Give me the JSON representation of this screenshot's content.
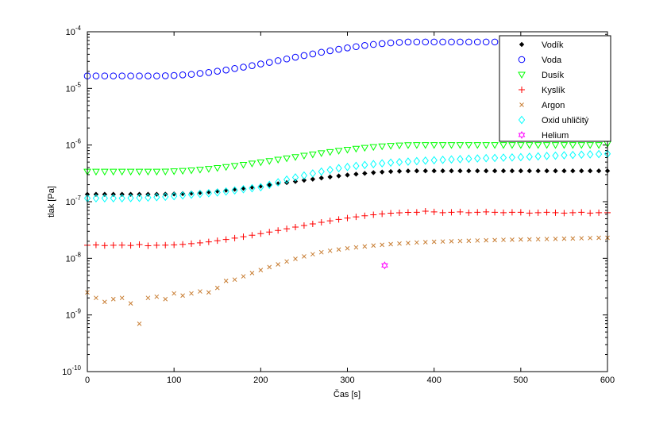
{
  "chart_data": {
    "type": "scatter",
    "xlabel": "Čas [s]",
    "ylabel": "tlak [Pa]",
    "xlim": [
      0,
      600
    ],
    "ylim": [
      1e-10,
      0.0001
    ],
    "yscale": "log",
    "grid": false,
    "legend_position": "top-right",
    "x_ticks": [
      "0",
      "100",
      "200",
      "300",
      "400",
      "500",
      "600"
    ],
    "y_ticks": [
      {
        "base": "10",
        "exp": "-10"
      },
      {
        "base": "10",
        "exp": "-9"
      },
      {
        "base": "10",
        "exp": "-8"
      },
      {
        "base": "10",
        "exp": "-7"
      },
      {
        "base": "10",
        "exp": "-6"
      },
      {
        "base": "10",
        "exp": "-5"
      },
      {
        "base": "10",
        "exp": "-4"
      }
    ],
    "x": [
      0,
      10,
      20,
      30,
      40,
      50,
      60,
      70,
      80,
      90,
      100,
      110,
      120,
      130,
      140,
      150,
      160,
      170,
      180,
      190,
      200,
      210,
      220,
      230,
      240,
      250,
      260,
      270,
      280,
      290,
      300,
      310,
      320,
      330,
      340,
      350,
      360,
      370,
      380,
      390,
      400,
      410,
      420,
      430,
      440,
      450,
      460,
      470,
      480,
      490,
      500,
      510,
      520,
      530,
      540,
      550,
      560,
      570,
      580,
      590,
      600
    ],
    "series": [
      {
        "name": "Vodík",
        "marker": "diamond-filled",
        "color": "#000000",
        "values": [
          1.35e-07,
          1.35e-07,
          1.35e-07,
          1.35e-07,
          1.35e-07,
          1.35e-07,
          1.35e-07,
          1.35e-07,
          1.35e-07,
          1.354e-07,
          1.366e-07,
          1.386e-07,
          1.415e-07,
          1.449e-07,
          1.49e-07,
          1.539e-07,
          1.594e-07,
          1.658e-07,
          1.727e-07,
          1.802e-07,
          1.887e-07,
          1.975e-07,
          2.071e-07,
          2.174e-07,
          2.279e-07,
          2.39e-07,
          2.5e-07,
          2.618e-07,
          2.731e-07,
          2.846e-07,
          2.958e-07,
          3.065e-07,
          3.164e-07,
          3.259e-07,
          3.339e-07,
          3.403e-07,
          3.451e-07,
          3.486e-07,
          3.5e-07,
          3.5e-07,
          3.5e-07,
          3.5e-07,
          3.5e-07,
          3.5e-07,
          3.5e-07,
          3.5e-07,
          3.5e-07,
          3.5e-07,
          3.5e-07,
          3.5e-07,
          3.5e-07,
          3.5e-07,
          3.5e-07,
          3.5e-07,
          3.5e-07,
          3.5e-07,
          3.5e-07,
          3.5e-07,
          3.5e-07,
          3.5e-07,
          3.5e-07
        ]
      },
      {
        "name": "Voda",
        "marker": "circle",
        "color": "#0000ff",
        "values": [
          1.66e-05,
          1.66e-05,
          1.66e-05,
          1.66e-05,
          1.66e-05,
          1.66e-05,
          1.66e-05,
          1.66e-05,
          1.66e-05,
          1.67e-05,
          1.69e-05,
          1.73e-05,
          1.77e-05,
          1.84e-05,
          1.91e-05,
          2.01e-05,
          2.11e-05,
          2.24e-05,
          2.37e-05,
          2.52e-05,
          2.7e-05,
          2.88e-05,
          3.09e-05,
          3.31e-05,
          3.55e-05,
          3.8e-05,
          4.06e-05,
          4.34e-05,
          4.62e-05,
          4.9e-05,
          5.19e-05,
          5.46e-05,
          5.72e-05,
          5.97e-05,
          6.18e-05,
          6.36e-05,
          6.49e-05,
          6.58e-05,
          6.6e-05,
          6.6e-05,
          6.6e-05,
          6.6e-05,
          6.6e-05,
          6.6e-05,
          6.6e-05,
          6.6e-05,
          6.6e-05,
          6.6e-05,
          6.6e-05,
          6.6e-05,
          6.6e-05,
          6.6e-05,
          6.6e-05,
          6.6e-05,
          6.6e-05,
          6.6e-05,
          6.6e-05,
          6.6e-05,
          6.6e-05,
          6.6e-05,
          6.6e-05
        ]
      },
      {
        "name": "Dusík",
        "marker": "triangle-down",
        "color": "#00ff00",
        "values": [
          3.4e-07,
          3.4e-07,
          3.4e-07,
          3.4e-07,
          3.4e-07,
          3.4e-07,
          3.4e-07,
          3.4e-07,
          3.4e-07,
          3.41e-07,
          3.45e-07,
          3.51e-07,
          3.58e-07,
          3.68e-07,
          3.8e-07,
          3.94e-07,
          4.11e-07,
          4.29e-07,
          4.49e-07,
          4.72e-07,
          4.97e-07,
          5.23e-07,
          5.53e-07,
          5.83e-07,
          6.15e-07,
          6.5e-07,
          6.84e-07,
          7.2e-07,
          7.56e-07,
          7.93e-07,
          8.28e-07,
          8.61e-07,
          8.93e-07,
          9.23e-07,
          9.49e-07,
          9.71e-07,
          9.85e-07,
          9.96e-07,
          1e-06,
          1e-06,
          1e-06,
          1e-06,
          1e-06,
          1e-06,
          1e-06,
          1e-06,
          1e-06,
          1e-06,
          1e-06,
          1e-06,
          1e-06,
          1e-06,
          1e-06,
          1e-06,
          1e-06,
          1e-06,
          1e-06,
          1e-06,
          1e-06,
          1e-06,
          1.05e-06
        ]
      },
      {
        "name": "Kyslík",
        "marker": "plus",
        "color": "#ff0000",
        "values": [
          1.7e-08,
          1.72e-08,
          1.68e-08,
          1.7e-08,
          1.71e-08,
          1.69e-08,
          1.75e-08,
          1.67e-08,
          1.7e-08,
          1.707e-08,
          1.731e-08,
          1.765e-08,
          1.816e-08,
          1.877e-08,
          1.955e-08,
          2.045e-08,
          2.149e-08,
          2.271e-08,
          2.406e-08,
          2.555e-08,
          2.725e-08,
          2.905e-08,
          3.109e-08,
          3.324e-08,
          3.555e-08,
          3.8e-08,
          4.051e-08,
          4.321e-08,
          4.592e-08,
          4.865e-08,
          5.136e-08,
          5.394e-08,
          5.649e-08,
          5.882e-08,
          6.083e-08,
          6.256e-08,
          6.375e-08,
          6.46e-08,
          6.5e-08,
          6.8e-08,
          6.6e-08,
          6.4e-08,
          6.5e-08,
          6.6e-08,
          6.4e-08,
          6.5e-08,
          6.6e-08,
          6.5e-08,
          6.4e-08,
          6.5e-08,
          6.5e-08,
          6.3e-08,
          6.4e-08,
          6.5e-08,
          6.4e-08,
          6.3e-08,
          6.4e-08,
          6.5e-08,
          6.3e-08,
          6.4e-08,
          6.4e-08
        ]
      },
      {
        "name": "Argon",
        "marker": "x",
        "color": "#c87d32",
        "values": [
          2.5e-09,
          2e-09,
          1.7e-09,
          1.9e-09,
          2e-09,
          1.6e-09,
          7e-10,
          2e-09,
          2.1e-09,
          1.9e-09,
          2.4e-09,
          2.2e-09,
          2.4e-09,
          2.6e-09,
          2.5e-09,
          3e-09,
          4e-09,
          4.2e-09,
          4.8e-09,
          5.5e-09,
          6.2e-09,
          7e-09,
          7.8e-09,
          8.8e-09,
          9.8e-09,
          1.08e-08,
          1.18e-08,
          1.28e-08,
          1.36e-08,
          1.43e-08,
          1.5e-08,
          1.56e-08,
          1.62e-08,
          1.68e-08,
          1.73e-08,
          1.78e-08,
          1.82e-08,
          1.86e-08,
          1.9e-08,
          1.93e-08,
          1.96e-08,
          1.98e-08,
          2e-08,
          2.02e-08,
          2.04e-08,
          2.06e-08,
          2.08e-08,
          2.1e-08,
          2.12e-08,
          2.13e-08,
          2.15e-08,
          2.16e-08,
          2.17e-08,
          2.19e-08,
          2.2e-08,
          2.22e-08,
          2.24e-08,
          2.26e-08,
          2.28e-08,
          2.3e-08,
          2.3e-08
        ]
      },
      {
        "name": "Oxid uhličitý",
        "marker": "diamond",
        "color": "#00ffff",
        "values": [
          1.15e-07,
          1.15e-07,
          1.15e-07,
          1.15e-07,
          1.15e-07,
          1.16e-07,
          1.17e-07,
          1.18e-07,
          1.2e-07,
          1.22e-07,
          1.25e-07,
          1.29e-07,
          1.33e-07,
          1.37e-07,
          1.41e-07,
          1.45e-07,
          1.51e-07,
          1.58e-07,
          1.66e-07,
          1.73e-07,
          1.8e-07,
          1.98e-07,
          2.2e-07,
          2.45e-07,
          2.68e-07,
          2.9e-07,
          3.15e-07,
          3.4e-07,
          3.65e-07,
          3.9e-07,
          4.1e-07,
          4.28e-07,
          4.44e-07,
          4.6e-07,
          4.75e-07,
          4.9e-07,
          5e-07,
          5.1e-07,
          5.2e-07,
          5.3e-07,
          5.4e-07,
          5.48e-07,
          5.56e-07,
          5.64e-07,
          5.72e-07,
          5.8e-07,
          5.86e-07,
          5.92e-07,
          5.98e-07,
          6.04e-07,
          6.1e-07,
          6.2e-07,
          6.3e-07,
          6.4e-07,
          6.5e-07,
          6.6e-07,
          6.68e-07,
          6.76e-07,
          6.84e-07,
          6.92e-07,
          7e-07
        ]
      },
      {
        "name": "Helium",
        "marker": "hexagram",
        "color": "#ff00ff",
        "points": [
          {
            "x": 343,
            "y": 7.5e-09
          }
        ]
      }
    ]
  }
}
